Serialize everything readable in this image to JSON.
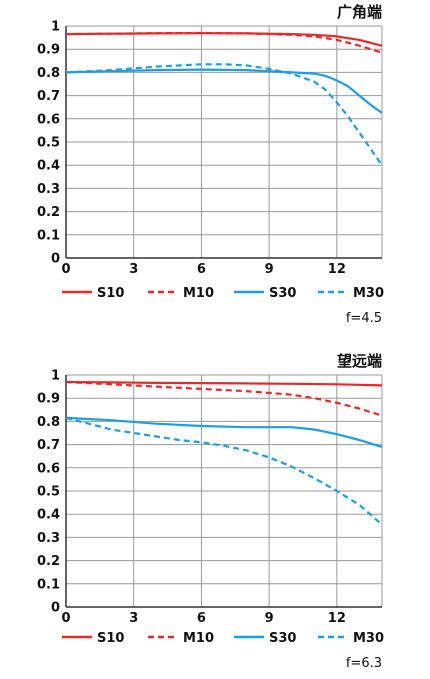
{
  "colors": {
    "red": "#e62a2a",
    "blue": "#1c9ee6",
    "grid": "#999999",
    "axis": "#333333"
  },
  "chart_data": [
    {
      "type": "line",
      "title": "广角端",
      "aperture": "f=4.5",
      "xlim": [
        0,
        14
      ],
      "ylim": [
        0,
        1
      ],
      "x_ticks": [
        "0",
        "3",
        "6",
        "9",
        "12"
      ],
      "y_ticks": [
        "0",
        "0.1",
        "0.2",
        "0.3",
        "0.4",
        "0.5",
        "0.6",
        "0.7",
        "0.8",
        "0.9",
        "1"
      ],
      "grid": true,
      "legend_position": "bottom",
      "series": [
        {
          "name": "S10",
          "color": "red",
          "dash": false,
          "x": [
            0,
            2,
            4,
            6,
            8,
            10,
            11,
            12,
            13,
            14
          ],
          "y": [
            0.965,
            0.967,
            0.968,
            0.969,
            0.968,
            0.965,
            0.962,
            0.955,
            0.94,
            0.915
          ]
        },
        {
          "name": "M10",
          "color": "red",
          "dash": true,
          "x": [
            0,
            2,
            4,
            6,
            8,
            10,
            11,
            12,
            13,
            14
          ],
          "y": [
            0.965,
            0.967,
            0.969,
            0.97,
            0.968,
            0.962,
            0.955,
            0.94,
            0.915,
            0.885
          ]
        },
        {
          "name": "S30",
          "color": "blue",
          "dash": false,
          "x": [
            0,
            2,
            4,
            6,
            8,
            9,
            10,
            11,
            11.5,
            12,
            12.5,
            13,
            13.5,
            14
          ],
          "y": [
            0.8,
            0.805,
            0.81,
            0.812,
            0.81,
            0.805,
            0.8,
            0.795,
            0.785,
            0.765,
            0.74,
            0.7,
            0.66,
            0.625
          ]
        },
        {
          "name": "M30",
          "color": "blue",
          "dash": true,
          "x": [
            0,
            2,
            4,
            6,
            7,
            8,
            9,
            10,
            11,
            11.5,
            12,
            12.5,
            13,
            13.5,
            14
          ],
          "y": [
            0.8,
            0.81,
            0.825,
            0.835,
            0.835,
            0.83,
            0.815,
            0.795,
            0.76,
            0.725,
            0.67,
            0.61,
            0.54,
            0.47,
            0.4
          ]
        }
      ]
    },
    {
      "type": "line",
      "title": "望远端",
      "aperture": "f=6.3",
      "xlim": [
        0,
        14
      ],
      "ylim": [
        0,
        1
      ],
      "x_ticks": [
        "0",
        "3",
        "6",
        "9",
        "12"
      ],
      "y_ticks": [
        "0",
        "0.1",
        "0.2",
        "0.3",
        "0.4",
        "0.5",
        "0.6",
        "0.7",
        "0.8",
        "0.9",
        "1"
      ],
      "grid": true,
      "legend_position": "bottom",
      "series": [
        {
          "name": "S10",
          "color": "red",
          "dash": false,
          "x": [
            0,
            2,
            4,
            6,
            8,
            10,
            12,
            14
          ],
          "y": [
            0.97,
            0.968,
            0.966,
            0.965,
            0.964,
            0.962,
            0.96,
            0.955
          ]
        },
        {
          "name": "M10",
          "color": "red",
          "dash": true,
          "x": [
            0,
            2,
            4,
            6,
            8,
            10,
            11,
            12,
            13,
            14
          ],
          "y": [
            0.97,
            0.96,
            0.95,
            0.94,
            0.93,
            0.915,
            0.9,
            0.88,
            0.855,
            0.825
          ]
        },
        {
          "name": "S30",
          "color": "blue",
          "dash": false,
          "x": [
            0,
            2,
            4,
            6,
            8,
            10,
            11,
            12,
            13,
            14
          ],
          "y": [
            0.815,
            0.805,
            0.79,
            0.78,
            0.775,
            0.775,
            0.765,
            0.745,
            0.72,
            0.69
          ]
        },
        {
          "name": "M30",
          "color": "blue",
          "dash": true,
          "x": [
            0,
            1,
            2,
            3,
            4,
            5,
            6,
            7,
            8,
            9,
            10,
            11,
            12,
            13,
            14
          ],
          "y": [
            0.815,
            0.79,
            0.765,
            0.75,
            0.735,
            0.72,
            0.71,
            0.695,
            0.675,
            0.645,
            0.605,
            0.555,
            0.5,
            0.44,
            0.355
          ]
        }
      ]
    }
  ]
}
